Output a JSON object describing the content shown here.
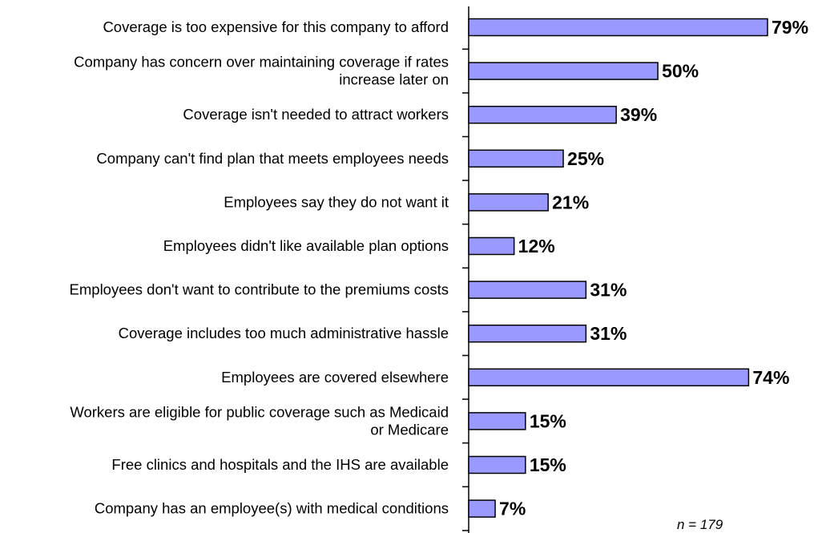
{
  "chart_data": {
    "type": "bar",
    "orientation": "horizontal",
    "categories": [
      [
        "Coverage is too expensive for this company to afford"
      ],
      [
        "Company has concern over maintaining coverage if rates",
        "increase later on"
      ],
      [
        "Coverage isn't needed to attract workers"
      ],
      [
        "Company can't find plan that meets employees needs"
      ],
      [
        "Employees say they do not want it"
      ],
      [
        "Employees didn't like available plan options"
      ],
      [
        "Employees don't want to contribute to the premiums costs"
      ],
      [
        "Coverage includes too much administrative hassle"
      ],
      [
        "Employees are covered elsewhere"
      ],
      [
        "Workers are eligible for public coverage such as Medicaid",
        "or Medicare"
      ],
      [
        "Free clinics and hospitals and the IHS are available"
      ],
      [
        "Company has an employee(s) with medical conditions"
      ]
    ],
    "values": [
      79,
      50,
      39,
      25,
      21,
      12,
      31,
      31,
      74,
      15,
      15,
      7
    ],
    "value_labels": [
      "79%",
      "50%",
      "39%",
      "25%",
      "21%",
      "12%",
      "31%",
      "31%",
      "74%",
      "15%",
      "15%",
      "7%"
    ],
    "xlim": [
      0,
      100
    ],
    "grid": false,
    "legend": "none",
    "bar_color": "#9999ff",
    "bar_edge_color": "#000000"
  },
  "note": "n = 179"
}
